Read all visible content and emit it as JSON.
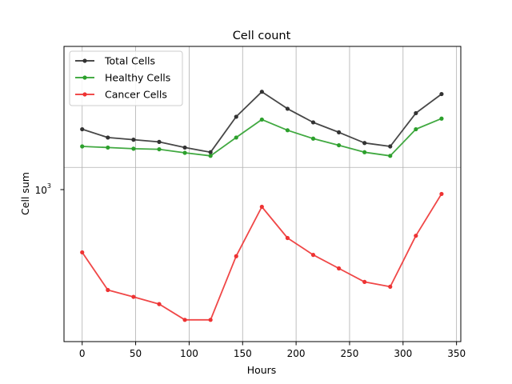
{
  "chart_data": {
    "type": "line",
    "title": "Cell count",
    "xlabel": "Hours",
    "ylabel": "Cell sum",
    "x": [
      0,
      24,
      48,
      72,
      96,
      120,
      144,
      168,
      192,
      216,
      240,
      264,
      288,
      312,
      336
    ],
    "series": [
      {
        "name": "Total Cells",
        "color": "#333333",
        "values": [
          1330,
          1250,
          1230,
          1210,
          1160,
          1120,
          1460,
          1760,
          1550,
          1400,
          1300,
          1200,
          1170,
          1500,
          1730
        ]
      },
      {
        "name": "Healthy Cells",
        "color": "#2ca02c",
        "values": [
          1170,
          1160,
          1150,
          1145,
          1115,
          1090,
          1250,
          1430,
          1320,
          1240,
          1180,
          1120,
          1090,
          1330,
          1440
        ]
      },
      {
        "name": "Cancer Cells",
        "color": "#ee3333",
        "values": [
          530,
          400,
          380,
          360,
          320,
          320,
          515,
          745,
          590,
          520,
          470,
          425,
          410,
          600,
          820
        ]
      }
    ],
    "x_ticks": [
      0,
      50,
      100,
      150,
      200,
      250,
      300,
      350
    ],
    "x_tick_labels": [
      "0",
      "50",
      "100",
      "150",
      "200",
      "250",
      "300",
      "350"
    ],
    "y_tick_label": "10",
    "y_tick_exponent": "3",
    "y_scale": "log",
    "xlim": [
      -17,
      354
    ],
    "ylim": [
      272,
      2470
    ],
    "grid": true,
    "legend_position": "upper-left"
  }
}
